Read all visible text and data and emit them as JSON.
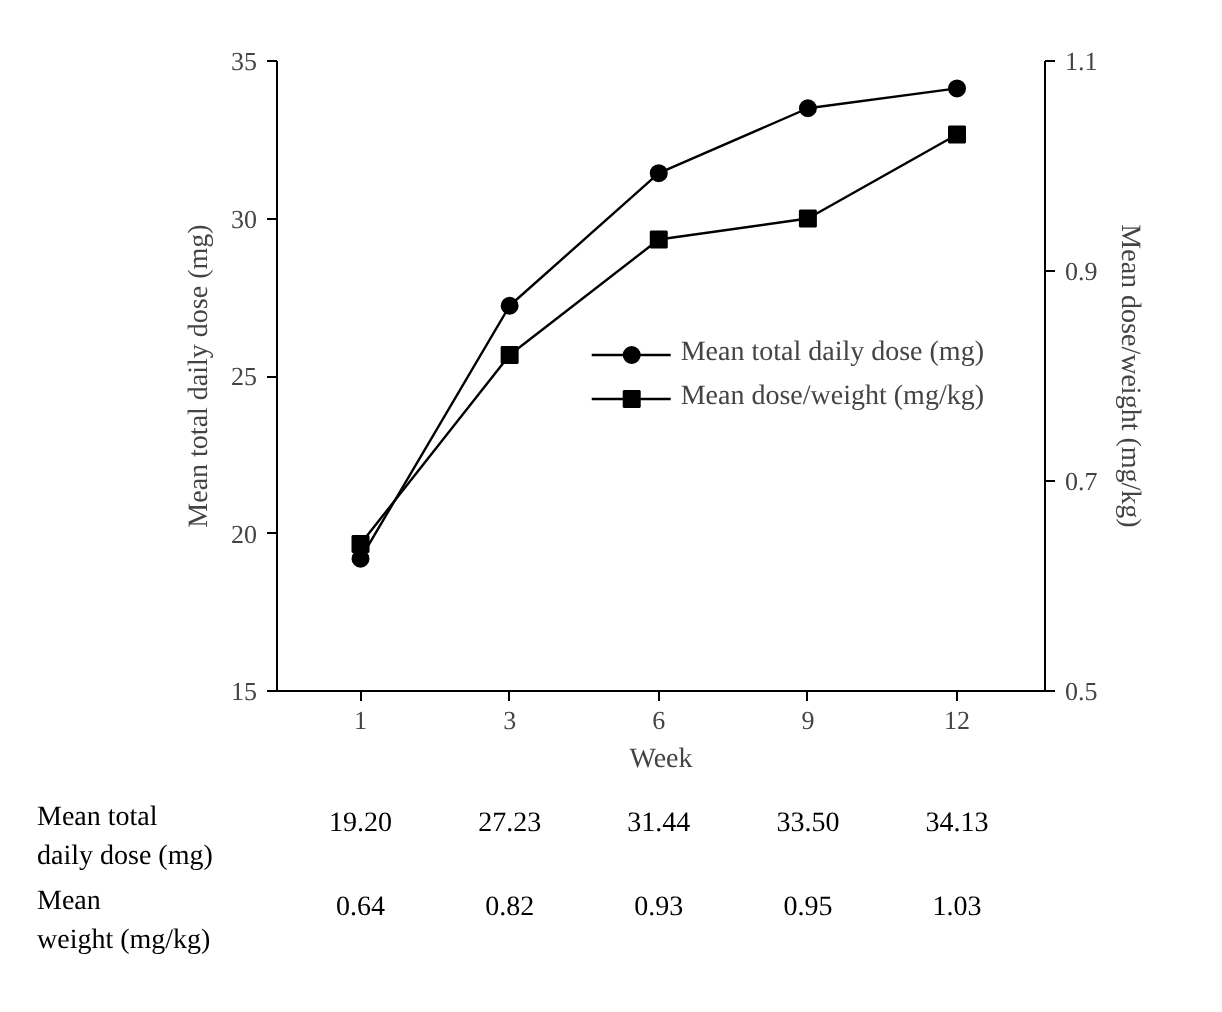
{
  "chart_data": {
    "type": "line",
    "xlabel": "Week",
    "ylabel": "Mean total daily dose (mg)",
    "y2label": "Mean dose/weight (mg/kg)",
    "categories": [
      "1",
      "3",
      "6",
      "9",
      "12"
    ],
    "ylim": [
      15,
      35
    ],
    "yticks": [
      15,
      20,
      25,
      30,
      35
    ],
    "y2lim": [
      0.5,
      1.1
    ],
    "y2ticks": [
      {
        "value": 0.5,
        "label": "0.5"
      },
      {
        "value": 0.7,
        "label": "0.7"
      },
      {
        "value": 0.9,
        "label": "0.9"
      },
      {
        "value": 1.1,
        "label": "1.1"
      }
    ],
    "series": [
      {
        "name": "Mean total daily dose (mg)",
        "color": "#000000",
        "marker": "circle",
        "values": [
          19.2,
          27.23,
          31.44,
          33.5,
          34.13
        ],
        "value_labels": [
          "19.20",
          "27.23",
          "31.44",
          "33.50",
          "34.13"
        ]
      },
      {
        "name": "Mean dose/weight (mg/kg)",
        "color": "#000000",
        "marker": "square",
        "axis": "y2",
        "values": [
          0.64,
          0.82,
          0.93,
          0.95,
          1.03
        ],
        "value_labels": [
          "0.64",
          "0.82",
          "0.93",
          "0.95",
          "1.03"
        ]
      }
    ],
    "annotations": [
      "Mean total\n daily dose (mg)",
      "Mean\n weight (mg/kg)"
    ],
    "legend": "right",
    "grid": false
  }
}
